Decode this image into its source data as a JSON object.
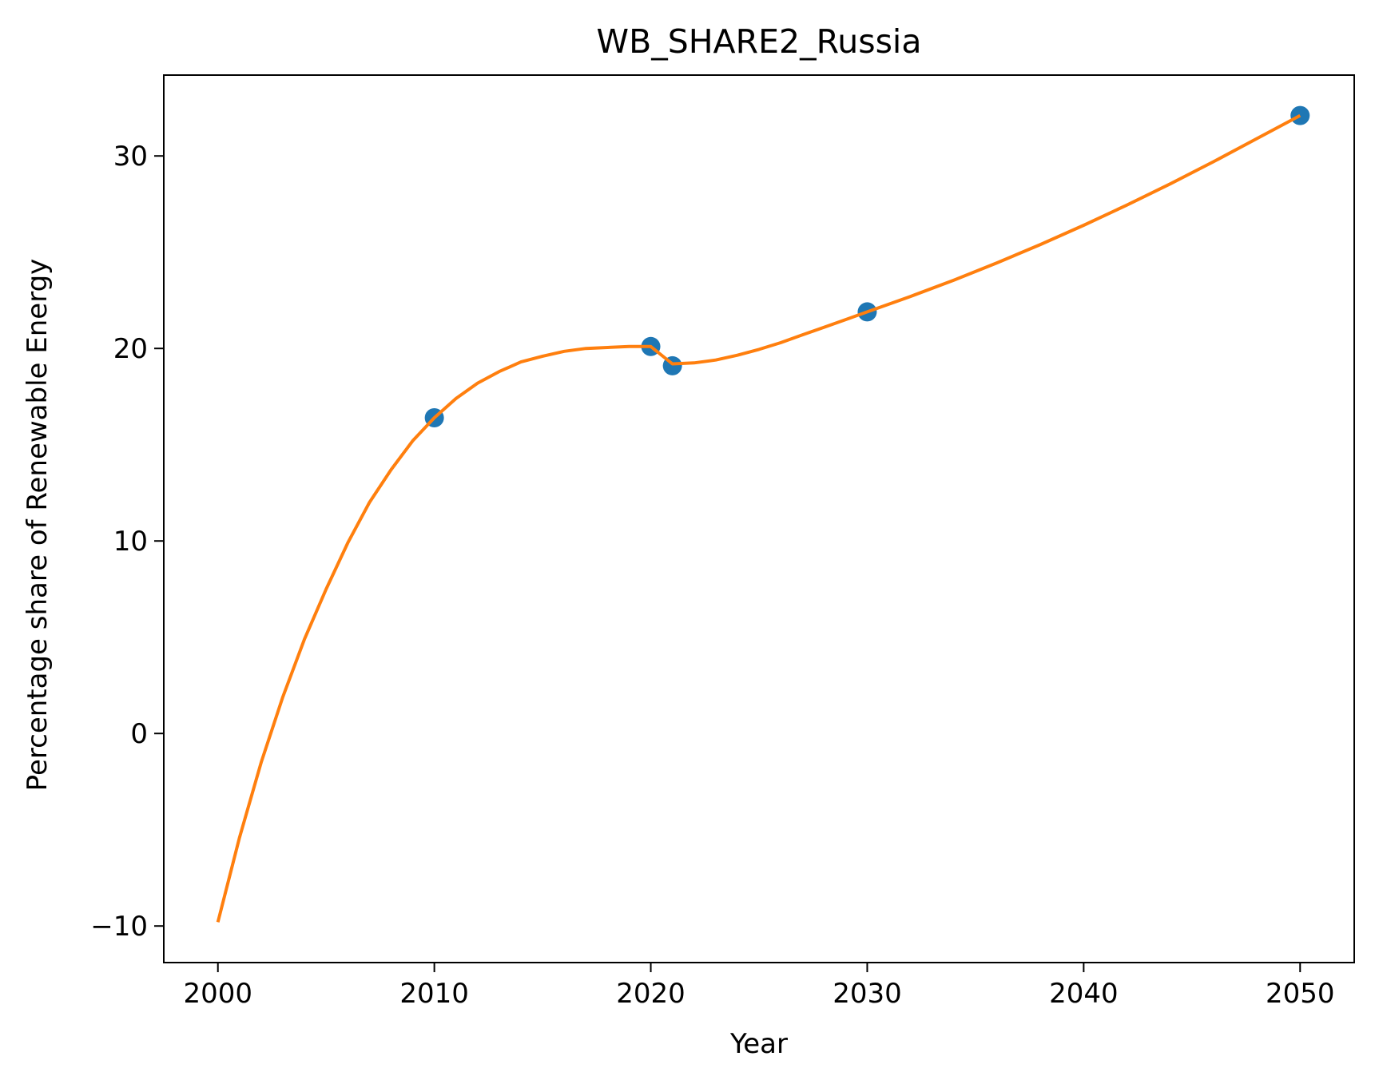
{
  "chart_data": {
    "type": "scatter",
    "title": "WB_SHARE2_Russia",
    "xlabel": "Year",
    "ylabel": "Percentage share of Renewable Energy",
    "xlim": [
      1997.5,
      2052.5
    ],
    "ylim": [
      -11.9,
      34.2
    ],
    "xticks": [
      2000,
      2010,
      2020,
      2030,
      2040,
      2050
    ],
    "yticks": [
      -10,
      0,
      10,
      20,
      30
    ],
    "xtick_labels": [
      "2000",
      "2010",
      "2020",
      "2030",
      "2040",
      "2050"
    ],
    "ytick_labels": [
      "−10",
      "0",
      "10",
      "20",
      "30"
    ],
    "grid": false,
    "legend": false,
    "series": [
      {
        "kind": "scatter",
        "color": "#1f77b4",
        "x": [
          2010,
          2020,
          2021,
          2030,
          2050
        ],
        "y": [
          16.4,
          20.1,
          19.1,
          21.9,
          32.1
        ]
      },
      {
        "kind": "line",
        "color": "#ff7f0e",
        "x": [
          2000,
          2001,
          2002,
          2003,
          2004,
          2005,
          2006,
          2007,
          2008,
          2009,
          2010,
          2011,
          2012,
          2013,
          2014,
          2015,
          2016,
          2017,
          2018,
          2019,
          2020,
          2021,
          2022,
          2023,
          2024,
          2025,
          2026,
          2027,
          2028,
          2029,
          2030,
          2032,
          2034,
          2036,
          2038,
          2040,
          2042,
          2044,
          2046,
          2048,
          2050
        ],
        "y": [
          -9.8,
          -5.4,
          -1.5,
          1.9,
          4.9,
          7.5,
          9.9,
          12.0,
          13.7,
          15.2,
          16.4,
          17.4,
          18.2,
          18.8,
          19.3,
          19.6,
          19.85,
          20.0,
          20.05,
          20.1,
          20.1,
          19.2,
          19.25,
          19.4,
          19.65,
          19.95,
          20.3,
          20.7,
          21.1,
          21.5,
          21.9,
          22.7,
          23.55,
          24.45,
          25.4,
          26.4,
          27.45,
          28.55,
          29.7,
          30.9,
          32.1
        ]
      }
    ]
  }
}
